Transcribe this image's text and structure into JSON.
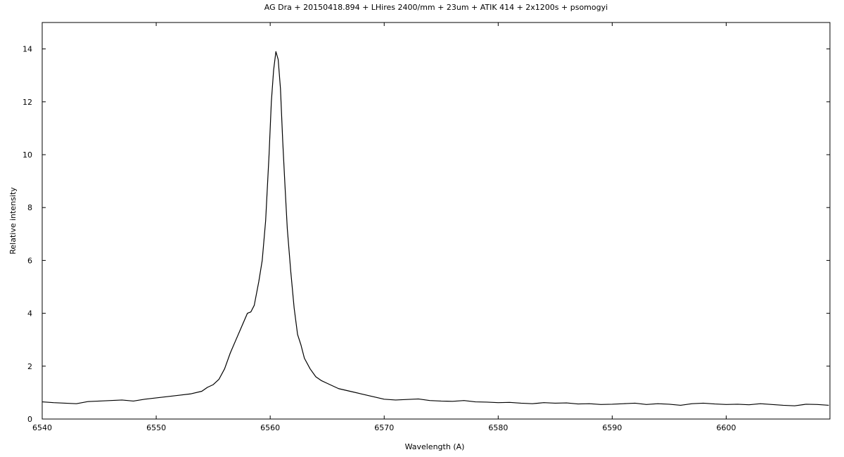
{
  "chart_data": {
    "type": "line",
    "title": "AG Dra + 20150418.894 + LHires 2400/mm + 23um + ATIK 414 + 2x1200s + psomogyi",
    "x_label": "Wavelength (A)",
    "y_label": "Relative intensity",
    "xlim": [
      6540,
      6609.1
    ],
    "ylim": [
      0,
      15
    ],
    "xticks": [
      6540,
      6550,
      6560,
      6570,
      6580,
      6590,
      6600
    ],
    "yticks": [
      0,
      2,
      4,
      6,
      8,
      10,
      12,
      14
    ],
    "grid": false,
    "color": "#000000",
    "x": [
      6540,
      6541,
      6542,
      6543,
      6544,
      6545,
      6546,
      6547,
      6548,
      6549,
      6550,
      6551,
      6552,
      6553,
      6554,
      6554.5,
      6555,
      6555.5,
      6556,
      6556.5,
      6557,
      6557.5,
      6558,
      6558.3,
      6558.6,
      6559,
      6559.3,
      6559.6,
      6559.9,
      6560.1,
      6560.3,
      6560.5,
      6560.7,
      6560.9,
      6561.1,
      6561.3,
      6561.5,
      6561.8,
      6562.1,
      6562.4,
      6562.7,
      6563,
      6563.5,
      6564,
      6564.5,
      6565,
      6565.5,
      6566,
      6567,
      6568,
      6569,
      6570,
      6571,
      6572,
      6573,
      6574,
      6575,
      6576,
      6577,
      6578,
      6579,
      6580,
      6581,
      6582,
      6583,
      6584,
      6585,
      6586,
      6587,
      6588,
      6589,
      6590,
      6591,
      6592,
      6593,
      6594,
      6595,
      6596,
      6597,
      6598,
      6599,
      6600,
      6601,
      6602,
      6603,
      6604,
      6605,
      6606,
      6607,
      6608,
      6609
    ],
    "values": [
      0.65,
      0.62,
      0.6,
      0.58,
      0.66,
      0.68,
      0.7,
      0.72,
      0.68,
      0.75,
      0.8,
      0.85,
      0.9,
      0.95,
      1.05,
      1.2,
      1.3,
      1.5,
      1.9,
      2.5,
      3.0,
      3.5,
      4.0,
      4.05,
      4.3,
      5.2,
      6.0,
      7.5,
      10.0,
      12.0,
      13.2,
      13.9,
      13.6,
      12.5,
      10.5,
      8.8,
      7.2,
      5.6,
      4.2,
      3.2,
      2.8,
      2.3,
      1.9,
      1.6,
      1.45,
      1.35,
      1.25,
      1.15,
      1.05,
      0.95,
      0.85,
      0.75,
      0.72,
      0.74,
      0.76,
      0.7,
      0.68,
      0.67,
      0.7,
      0.65,
      0.64,
      0.62,
      0.63,
      0.6,
      0.58,
      0.62,
      0.6,
      0.61,
      0.57,
      0.58,
      0.55,
      0.56,
      0.58,
      0.6,
      0.55,
      0.58,
      0.56,
      0.52,
      0.58,
      0.6,
      0.57,
      0.55,
      0.56,
      0.54,
      0.58,
      0.55,
      0.52,
      0.5,
      0.56,
      0.55,
      0.52
    ]
  }
}
